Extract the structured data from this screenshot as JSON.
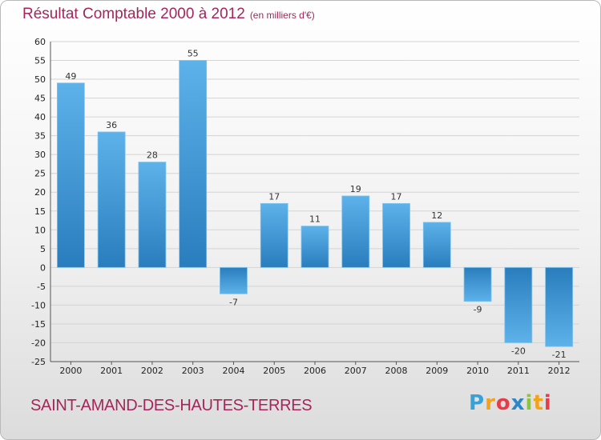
{
  "header": {
    "title": "Résultat Comptable 2000 à 2012",
    "subtitle": "(en milliers d'€)"
  },
  "footer": {
    "commune": "SAINT-AMAND-DES-HAUTES-TERRES",
    "logo": [
      "P",
      "r",
      "o",
      "x",
      "i",
      "t",
      "i"
    ]
  },
  "colors": {
    "bar_light": "#5aaee6",
    "bar_dark": "#2a7fc0",
    "title": "#a6255a",
    "grid": "#d4d4d4"
  },
  "chart_data": {
    "type": "bar",
    "title": "Résultat Comptable 2000 à 2012",
    "subtitle": "(en milliers d'€)",
    "xlabel": "",
    "ylabel": "",
    "categories": [
      "2000",
      "2001",
      "2002",
      "2003",
      "2004",
      "2005",
      "2006",
      "2007",
      "2008",
      "2009",
      "2010",
      "2011",
      "2012"
    ],
    "values": [
      49,
      36,
      28,
      55,
      -7,
      17,
      11,
      19,
      17,
      12,
      -9,
      -20,
      -21
    ],
    "ylim": [
      -25,
      60
    ],
    "yticks": [
      60,
      55,
      50,
      45,
      40,
      35,
      30,
      25,
      20,
      15,
      10,
      5,
      0,
      -5,
      -10,
      -15,
      -20,
      -25
    ],
    "grid": true
  }
}
